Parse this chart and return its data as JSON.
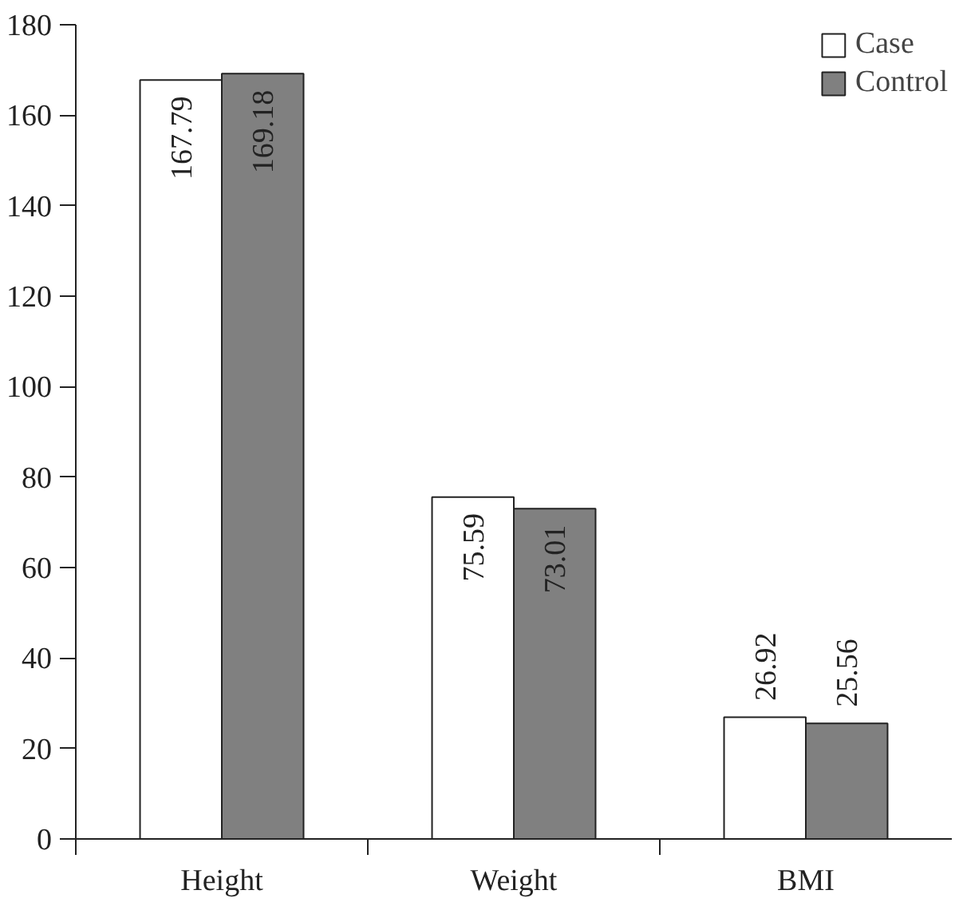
{
  "chart_data": {
    "type": "bar",
    "categories": [
      "Height",
      "Weight",
      "BMI"
    ],
    "series": [
      {
        "name": "Case",
        "color": "#ffffff",
        "values": [
          167.79,
          75.59,
          26.92
        ]
      },
      {
        "name": "Control",
        "color": "#808080",
        "values": [
          169.18,
          73.01,
          25.56
        ]
      }
    ],
    "ylim": [
      0,
      180
    ],
    "yticks": [
      0,
      20,
      40,
      60,
      80,
      100,
      120,
      140,
      160,
      180
    ],
    "data_labels": true,
    "legend": "top right",
    "grid": false
  }
}
